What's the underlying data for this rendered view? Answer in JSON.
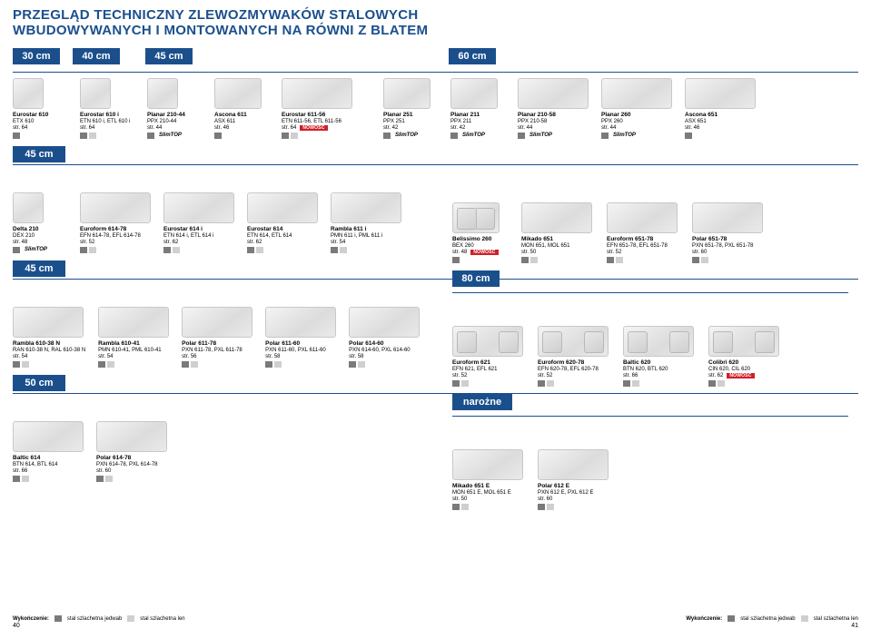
{
  "colors": {
    "brand_blue": "#1b4f8c",
    "nowosc_red": "#d01f27",
    "swatch_dark": "#7a7a7a",
    "swatch_light": "#cfcfcf",
    "background": "#ffffff"
  },
  "typography": {
    "title_fontsize": 15,
    "title_weight": 900,
    "body_fontsize": 7,
    "label_fontsize": 11
  },
  "title_line1": "PRZEGLĄD TECHNICZNY ZLEWOZMYWAKÓW STALOWYCH",
  "title_line2": "WBUDOWYWANYCH I MONTOWANYCH NA RÓWNI Z BLATEM",
  "size_headers": [
    "30 cm",
    "40 cm",
    "45 cm",
    "60 cm"
  ],
  "section_45_a": "45 cm",
  "section_45_b": "45 cm",
  "section_50": "50 cm",
  "section_80": "80 cm",
  "section_narozne": "narożne",
  "badge_nowosc": "NOWOŚĆ",
  "badge_slimtop": "SlimTOP",
  "row1": [
    {
      "name": "Eurostar 610",
      "code": "ETX 610",
      "page": "str. 64",
      "sw": [
        "dk"
      ]
    },
    {
      "name": "Eurostar 610 i",
      "code": "ETN 610 i, ETL 610 i",
      "page": "str. 64",
      "sw": [
        "dk",
        "lt"
      ]
    },
    {
      "name": "Planar 210-44",
      "code": "PPX 210-44",
      "page": "str. 44",
      "sw": [
        "dk"
      ],
      "slim": true
    },
    {
      "name": "Ascona 611",
      "code": "ASX 611",
      "page": "str. 46",
      "sw": [
        "dk"
      ]
    },
    {
      "name": "Eurostar 611-56",
      "code": "ETN 611-56, ETL 611-56",
      "page": "str. 64",
      "sw": [
        "dk",
        "lt"
      ],
      "nowosc": true
    }
  ],
  "row1r": [
    {
      "name": "Planar 251",
      "code": "PPX 251",
      "page": "str. 42",
      "sw": [
        "dk"
      ],
      "slim": true
    },
    {
      "name": "Planar 211",
      "code": "PPX 211",
      "page": "str. 42",
      "sw": [
        "dk"
      ],
      "slim": true
    },
    {
      "name": "Planar 210-58",
      "code": "PPX 210-58",
      "page": "str. 44",
      "sw": [
        "dk"
      ],
      "slim": true
    },
    {
      "name": "Planar 260",
      "code": "PPX 260",
      "page": "str. 44",
      "sw": [
        "dk"
      ],
      "slim": true
    },
    {
      "name": "Ascona 651",
      "code": "ASX 651",
      "page": "str. 46",
      "sw": [
        "dk"
      ]
    }
  ],
  "row2_left": [
    {
      "name": "Delta 210",
      "code": "DEX 210",
      "page": "str. 48",
      "sw": [
        "dk"
      ],
      "slim": true
    },
    {
      "name": "Euroform 614-78",
      "code": "EFN 614-78, EFL 614-78",
      "page": "str. 52",
      "sw": [
        "dk",
        "lt"
      ]
    },
    {
      "name": "Eurostar 614 i",
      "code": "ETN 614 i, ETL 614 i",
      "page": "str. 62",
      "sw": [
        "dk",
        "lt"
      ]
    },
    {
      "name": "Eurostar 614",
      "code": "ETN 614, ETL 614",
      "page": "str. 62",
      "sw": [
        "dk",
        "lt"
      ]
    },
    {
      "name": "Rambla 611 i",
      "code": "PMN 611 i, PML 611 i",
      "page": "str. 54",
      "sw": [
        "dk",
        "lt"
      ]
    }
  ],
  "row2_right_top": [
    {
      "name": "Belissimo 260",
      "code": "BEX 260",
      "page": "str. 48",
      "sw": [
        "dk"
      ],
      "nowosc": true
    },
    {
      "name": "Mikado 651",
      "code": "MON 651, MOL 651",
      "page": "str. 50",
      "sw": [
        "dk",
        "lt"
      ]
    },
    {
      "name": "Euroform 651-78",
      "code": "EFN 651-78, EFL 651-78",
      "page": "str. 52",
      "sw": [
        "dk",
        "lt"
      ]
    },
    {
      "name": "Polar 651-78",
      "code": "PXN 651-78, PXL 651-78",
      "page": "str. 60",
      "sw": [
        "dk",
        "lt"
      ]
    }
  ],
  "row3_left": [
    {
      "name": "Rambla 610-38 N",
      "code": "RAN 610-38 N, RAL 610-38 N",
      "page": "str. 54",
      "sw": [
        "dk",
        "lt"
      ]
    },
    {
      "name": "Rambla 610-41",
      "code": "PMN 610-41, PML 610-41",
      "page": "str. 54",
      "sw": [
        "dk",
        "lt"
      ]
    },
    {
      "name": "Polar 611-78",
      "code": "PXN 611-78, PXL 611-78",
      "page": "str. 56",
      "sw": [
        "dk",
        "lt"
      ]
    },
    {
      "name": "Polar 611-60",
      "code": "PXN 611-60, PXL 611-60",
      "page": "str. 58",
      "sw": [
        "dk",
        "lt"
      ]
    },
    {
      "name": "Polar 614-60",
      "code": "PXN 614-60, PXL 614-60",
      "page": "str. 58",
      "sw": [
        "dk",
        "lt"
      ]
    }
  ],
  "row3_right_top": [
    {
      "name": "Euroform 621",
      "code": "EFN 621, EFL 621",
      "page": "str. 52",
      "sw": [
        "dk",
        "lt"
      ]
    },
    {
      "name": "Euroform 620-78",
      "code": "EFN 620-78, EFL 620-78",
      "page": "str. 52",
      "sw": [
        "dk",
        "lt"
      ]
    },
    {
      "name": "Baltic 620",
      "code": "BTN 620, BTL 620",
      "page": "str. 66",
      "sw": [
        "dk",
        "lt"
      ]
    },
    {
      "name": "Colibri 620",
      "code": "CIN 620, CIL 620",
      "page": "str. 62",
      "sw": [
        "dk",
        "lt"
      ],
      "nowosc": true
    }
  ],
  "row4_left": [
    {
      "name": "Baltic 614",
      "code": "BTN 614, BTL 614",
      "page": "str. 66",
      "sw": [
        "dk",
        "lt"
      ]
    },
    {
      "name": "Polar 614-78",
      "code": "PXN 614-78, PXL 614-78",
      "page": "str. 60",
      "sw": [
        "dk",
        "lt"
      ]
    }
  ],
  "row4_right": [
    {
      "name": "Mikado 651 E",
      "code": "MON 651 E, MOL 651 E",
      "page": "str. 50",
      "sw": [
        "dk",
        "lt"
      ]
    },
    {
      "name": "Polar 612 E",
      "code": "PXN 612 E, PXL 612 E",
      "page": "str. 60",
      "sw": [
        "dk",
        "lt"
      ]
    }
  ],
  "footer": {
    "label": "Wykończenie:",
    "dk": "stal szlachetna jedwab",
    "lt": "stal szlachetna len",
    "page_left": "40",
    "page_right": "41"
  }
}
